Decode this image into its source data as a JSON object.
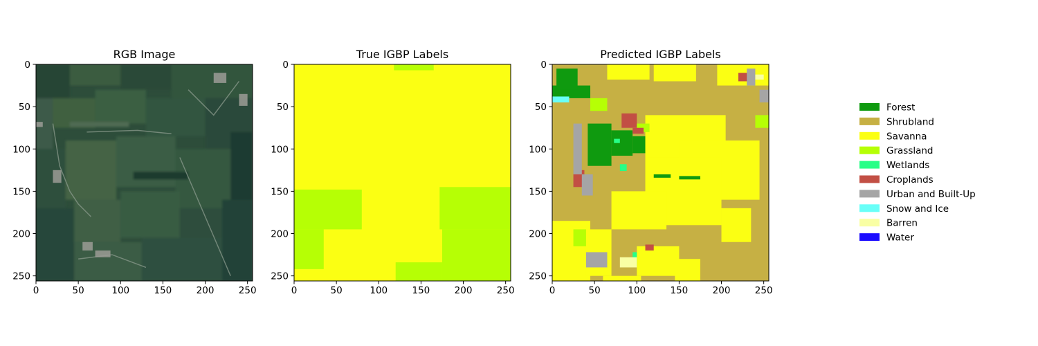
{
  "chart_data": [
    {
      "type": "heatmap",
      "title": "RGB Image",
      "xlim": [
        0,
        256
      ],
      "ylim": [
        256,
        0
      ],
      "xticks": [
        0,
        50,
        100,
        150,
        200,
        250
      ],
      "yticks": [
        0,
        50,
        100,
        150,
        200,
        250
      ],
      "content": "satellite-image"
    },
    {
      "type": "heatmap",
      "title": "True IGBP Labels",
      "xlim": [
        0,
        256
      ],
      "ylim": [
        256,
        0
      ],
      "xticks": [
        0,
        50,
        100,
        150,
        200,
        250
      ],
      "yticks": [
        0,
        50,
        100,
        150,
        200,
        250
      ],
      "background_class": "Savanna",
      "regions": [
        {
          "class": "Grassland",
          "x0": 0,
          "x1": 80,
          "y0": 148,
          "y1": 195
        },
        {
          "class": "Grassland",
          "x0": 0,
          "x1": 35,
          "y0": 195,
          "y1": 242
        },
        {
          "class": "Grassland",
          "x0": 172,
          "x1": 256,
          "y0": 145,
          "y1": 195
        },
        {
          "class": "Grassland",
          "x0": 175,
          "x1": 256,
          "y0": 195,
          "y1": 256
        },
        {
          "class": "Grassland",
          "x0": 120,
          "x1": 175,
          "y0": 234,
          "y1": 256
        },
        {
          "class": "Grassland",
          "x0": 118,
          "x1": 165,
          "y0": 0,
          "y1": 7
        }
      ]
    },
    {
      "type": "heatmap",
      "title": "Predicted IGBP Labels",
      "xlim": [
        0,
        256
      ],
      "ylim": [
        256,
        0
      ],
      "xticks": [
        0,
        50,
        100,
        150,
        200,
        250
      ],
      "yticks": [
        0,
        50,
        100,
        150,
        200,
        250
      ],
      "background_class": "Shrubland",
      "regions": [
        {
          "class": "Savanna",
          "x0": 65,
          "x1": 115,
          "y0": 0,
          "y1": 18
        },
        {
          "class": "Savanna",
          "x0": 120,
          "x1": 170,
          "y0": 0,
          "y1": 20
        },
        {
          "class": "Savanna",
          "x0": 195,
          "x1": 256,
          "y0": 0,
          "y1": 25
        },
        {
          "class": "Savanna",
          "x0": 110,
          "x1": 205,
          "y0": 60,
          "y1": 110
        },
        {
          "class": "Savanna",
          "x0": 150,
          "x1": 245,
          "y0": 90,
          "y1": 160
        },
        {
          "class": "Savanna",
          "x0": 110,
          "x1": 200,
          "y0": 110,
          "y1": 190
        },
        {
          "class": "Savanna",
          "x0": 70,
          "x1": 135,
          "y0": 150,
          "y1": 195
        },
        {
          "class": "Savanna",
          "x0": 0,
          "x1": 45,
          "y0": 185,
          "y1": 256
        },
        {
          "class": "Savanna",
          "x0": 40,
          "x1": 70,
          "y0": 195,
          "y1": 250
        },
        {
          "class": "Savanna",
          "x0": 100,
          "x1": 150,
          "y0": 215,
          "y1": 250
        },
        {
          "class": "Savanna",
          "x0": 60,
          "x1": 105,
          "y0": 250,
          "y1": 256
        },
        {
          "class": "Savanna",
          "x0": 145,
          "x1": 175,
          "y0": 230,
          "y1": 256
        },
        {
          "class": "Savanna",
          "x0": 200,
          "x1": 235,
          "y0": 170,
          "y1": 210
        },
        {
          "class": "Forest",
          "x0": 0,
          "x1": 45,
          "y0": 25,
          "y1": 40
        },
        {
          "class": "Forest",
          "x0": 5,
          "x1": 30,
          "y0": 5,
          "y1": 30
        },
        {
          "class": "Forest",
          "x0": 42,
          "x1": 70,
          "y0": 70,
          "y1": 120
        },
        {
          "class": "Forest",
          "x0": 70,
          "x1": 95,
          "y0": 78,
          "y1": 108
        },
        {
          "class": "Forest",
          "x0": 95,
          "x1": 110,
          "y0": 85,
          "y1": 105
        },
        {
          "class": "Forest",
          "x0": 120,
          "x1": 140,
          "y0": 130,
          "y1": 134
        },
        {
          "class": "Forest",
          "x0": 150,
          "x1": 175,
          "y0": 132,
          "y1": 136
        },
        {
          "class": "Grassland",
          "x0": 95,
          "x1": 115,
          "y0": 70,
          "y1": 80
        },
        {
          "class": "Grassland",
          "x0": 45,
          "x1": 65,
          "y0": 40,
          "y1": 55
        },
        {
          "class": "Grassland",
          "x0": 25,
          "x1": 40,
          "y0": 195,
          "y1": 215
        },
        {
          "class": "Grassland",
          "x0": 240,
          "x1": 256,
          "y0": 60,
          "y1": 75
        },
        {
          "class": "Wetlands",
          "x0": 80,
          "x1": 88,
          "y0": 118,
          "y1": 126
        },
        {
          "class": "Wetlands",
          "x0": 95,
          "x1": 100,
          "y0": 222,
          "y1": 238
        },
        {
          "class": "Wetlands",
          "x0": 73,
          "x1": 80,
          "y0": 88,
          "y1": 93
        },
        {
          "class": "Croplands",
          "x0": 82,
          "x1": 100,
          "y0": 58,
          "y1": 75
        },
        {
          "class": "Croplands",
          "x0": 95,
          "x1": 108,
          "y0": 75,
          "y1": 82
        },
        {
          "class": "Croplands",
          "x0": 25,
          "x1": 38,
          "y0": 125,
          "y1": 145
        },
        {
          "class": "Croplands",
          "x0": 110,
          "x1": 120,
          "y0": 213,
          "y1": 220
        },
        {
          "class": "Croplands",
          "x0": 220,
          "x1": 232,
          "y0": 10,
          "y1": 20
        },
        {
          "class": "Urban and Built-Up",
          "x0": 25,
          "x1": 35,
          "y0": 70,
          "y1": 130
        },
        {
          "class": "Urban and Built-Up",
          "x0": 35,
          "x1": 48,
          "y0": 130,
          "y1": 155
        },
        {
          "class": "Urban and Built-Up",
          "x0": 40,
          "x1": 65,
          "y0": 222,
          "y1": 240
        },
        {
          "class": "Urban and Built-Up",
          "x0": 230,
          "x1": 240,
          "y0": 5,
          "y1": 25
        },
        {
          "class": "Urban and Built-Up",
          "x0": 245,
          "x1": 256,
          "y0": 30,
          "y1": 45
        },
        {
          "class": "Snow and Ice",
          "x0": 0,
          "x1": 20,
          "y0": 38,
          "y1": 45
        },
        {
          "class": "Barren",
          "x0": 80,
          "x1": 100,
          "y0": 228,
          "y1": 240
        },
        {
          "class": "Barren",
          "x0": 240,
          "x1": 250,
          "y0": 12,
          "y1": 18
        }
      ]
    }
  ],
  "legend": {
    "placement": "right",
    "items": [
      {
        "label": "Forest",
        "color": "#0f9a0f"
      },
      {
        "label": "Shrubland",
        "color": "#c6b044"
      },
      {
        "label": "Savanna",
        "color": "#fbff13"
      },
      {
        "label": "Grassland",
        "color": "#b6ff05"
      },
      {
        "label": "Wetlands",
        "color": "#27ff87"
      },
      {
        "label": "Croplands",
        "color": "#c24f44"
      },
      {
        "label": "Urban and Built-Up",
        "color": "#a5a5a5"
      },
      {
        "label": "Snow and Ice",
        "color": "#69fff8"
      },
      {
        "label": "Barren",
        "color": "#f9ffa4"
      },
      {
        "label": "Water",
        "color": "#1c0dff"
      }
    ]
  }
}
